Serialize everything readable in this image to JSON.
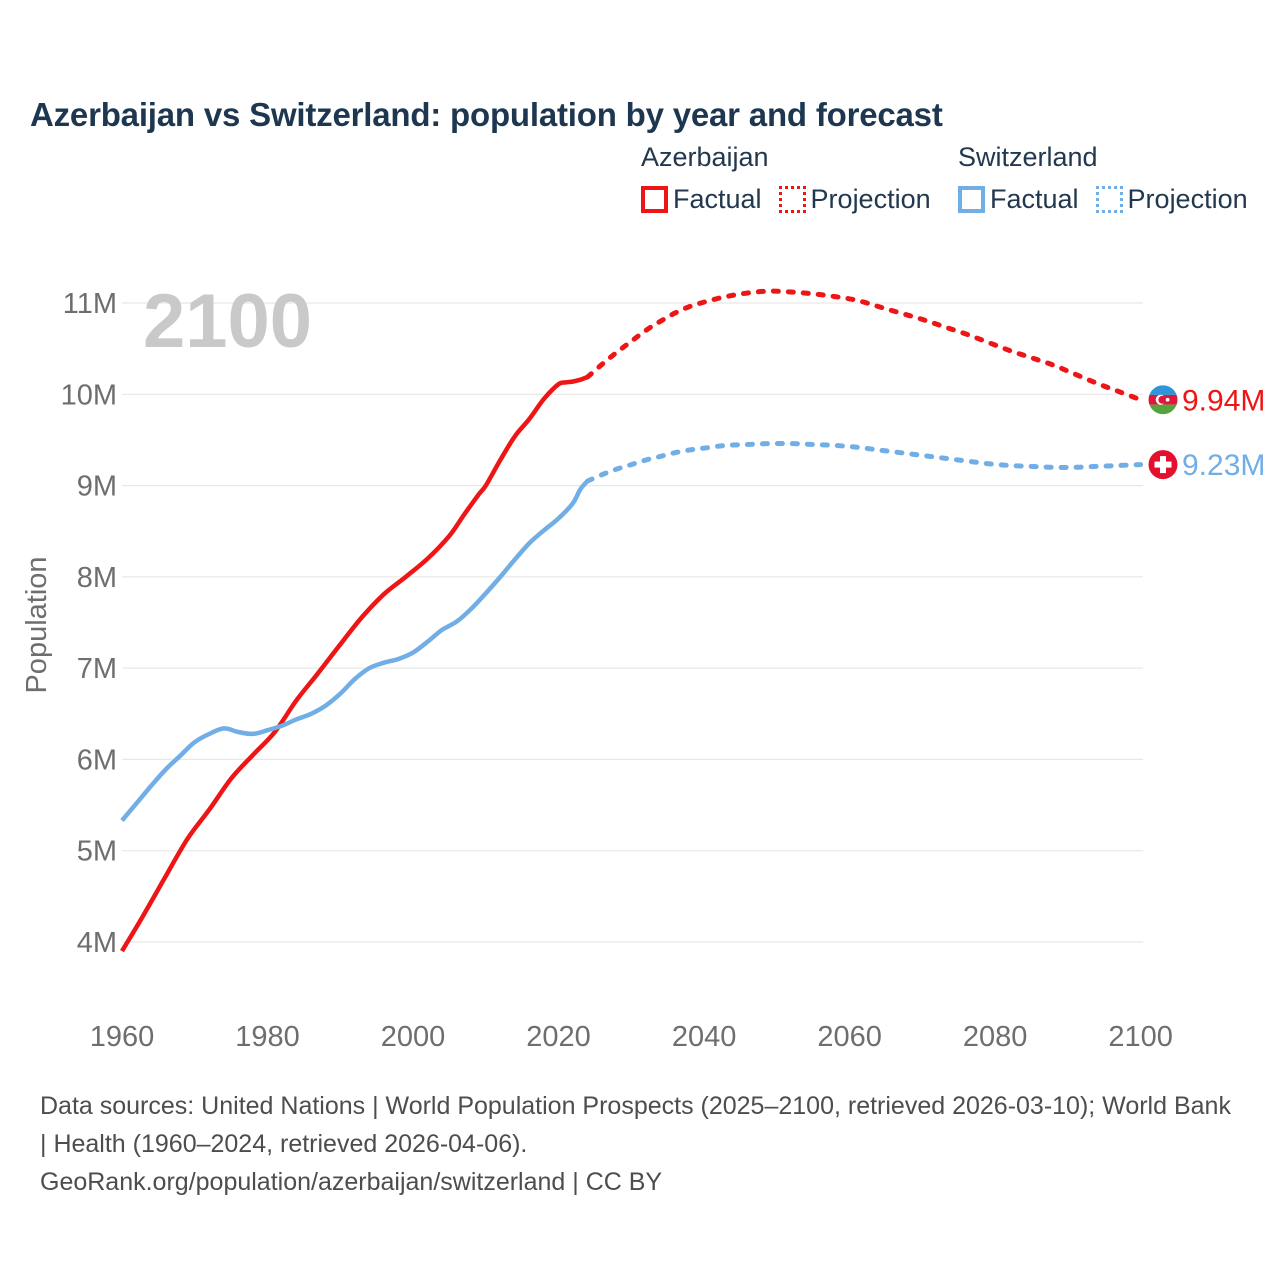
{
  "title": "Azerbaijan vs Switzerland: population by year and forecast",
  "watermark": "2100",
  "legend": {
    "groups": [
      {
        "country": "Azerbaijan",
        "color": "#ed1515",
        "items": [
          {
            "label": "Factual",
            "style": "solid"
          },
          {
            "label": "Projection",
            "style": "dotted"
          }
        ]
      },
      {
        "country": "Switzerland",
        "color": "#72aee6",
        "items": [
          {
            "label": "Factual",
            "style": "solid"
          },
          {
            "label": "Projection",
            "style": "dotted"
          }
        ]
      }
    ]
  },
  "chart_data": {
    "type": "line",
    "title": "Azerbaijan vs Switzerland: population by year and forecast",
    "xlabel": "",
    "ylabel": "Population",
    "xlim": [
      1960,
      2100
    ],
    "ylim": [
      3.55,
      11.5
    ],
    "grid": "horizontal",
    "legend_position": "top-right",
    "x_ticks": [
      {
        "value": 1960,
        "label": "1960"
      },
      {
        "value": 1980,
        "label": "1980"
      },
      {
        "value": 2000,
        "label": "2000"
      },
      {
        "value": 2020,
        "label": "2020"
      },
      {
        "value": 2040,
        "label": "2040"
      },
      {
        "value": 2060,
        "label": "2060"
      },
      {
        "value": 2080,
        "label": "2080"
      },
      {
        "value": 2100,
        "label": "2100"
      }
    ],
    "y_ticks": [
      {
        "value": 4,
        "label": "4M"
      },
      {
        "value": 5,
        "label": "5M"
      },
      {
        "value": 6,
        "label": "6M"
      },
      {
        "value": 7,
        "label": "7M"
      },
      {
        "value": 8,
        "label": "8M"
      },
      {
        "value": 9,
        "label": "9M"
      },
      {
        "value": 10,
        "label": "10M"
      },
      {
        "value": 11,
        "label": "11M"
      }
    ],
    "unit": "millions",
    "series": [
      {
        "id": "azerbaijan-factual",
        "name": "Azerbaijan Factual",
        "color": "#ed1515",
        "style": "solid",
        "x": [
          1960,
          1963,
          1966,
          1969,
          1972,
          1975,
          1978,
          1981,
          1984,
          1987,
          1990,
          1993,
          1996,
          1999,
          2002,
          2005,
          2007,
          2009,
          2010,
          2012,
          2014,
          2016,
          2018,
          2020,
          2021,
          2022,
          2023,
          2024
        ],
        "values": [
          3.9,
          4.3,
          4.72,
          5.13,
          5.45,
          5.79,
          6.05,
          6.3,
          6.65,
          6.95,
          7.26,
          7.56,
          7.81,
          8.0,
          8.2,
          8.45,
          8.68,
          8.9,
          9.0,
          9.28,
          9.54,
          9.73,
          9.95,
          10.11,
          10.13,
          10.14,
          10.16,
          10.19
        ]
      },
      {
        "id": "azerbaijan-projection",
        "name": "Azerbaijan Projection",
        "color": "#ed1515",
        "style": "dotted",
        "x": [
          2024,
          2026,
          2028,
          2030,
          2032,
          2034,
          2036,
          2038,
          2040,
          2043,
          2046,
          2049,
          2052,
          2055,
          2058,
          2061,
          2064,
          2067,
          2070,
          2073,
          2076,
          2079,
          2082,
          2085,
          2088,
          2091,
          2094,
          2097,
          2100
        ],
        "values": [
          10.19,
          10.33,
          10.46,
          10.58,
          10.7,
          10.8,
          10.89,
          10.96,
          11.01,
          11.07,
          11.11,
          11.13,
          11.12,
          11.1,
          11.07,
          11.03,
          10.96,
          10.89,
          10.82,
          10.74,
          10.66,
          10.57,
          10.48,
          10.4,
          10.32,
          10.22,
          10.12,
          10.03,
          9.94
        ]
      },
      {
        "id": "switzerland-factual",
        "name": "Switzerland Factual",
        "color": "#72aee6",
        "style": "solid",
        "x": [
          1960,
          1962,
          1964,
          1966,
          1968,
          1970,
          1972,
          1974,
          1976,
          1978,
          1980,
          1982,
          1984,
          1986,
          1988,
          1990,
          1992,
          1994,
          1996,
          1998,
          2000,
          2002,
          2004,
          2006,
          2008,
          2010,
          2012,
          2014,
          2016,
          2018,
          2020,
          2022,
          2023,
          2024
        ],
        "values": [
          5.33,
          5.52,
          5.71,
          5.89,
          6.04,
          6.19,
          6.28,
          6.34,
          6.3,
          6.28,
          6.32,
          6.37,
          6.44,
          6.5,
          6.59,
          6.72,
          6.88,
          7.0,
          7.06,
          7.1,
          7.17,
          7.29,
          7.42,
          7.51,
          7.65,
          7.82,
          8.0,
          8.19,
          8.37,
          8.51,
          8.64,
          8.81,
          8.96,
          9.05
        ]
      },
      {
        "id": "switzerland-projection",
        "name": "Switzerland Projection",
        "color": "#72aee6",
        "style": "dotted",
        "x": [
          2024,
          2026,
          2028,
          2030,
          2032,
          2034,
          2036,
          2038,
          2040,
          2043,
          2046,
          2049,
          2052,
          2055,
          2058,
          2061,
          2064,
          2067,
          2070,
          2073,
          2076,
          2079,
          2082,
          2085,
          2088,
          2091,
          2094,
          2097,
          2100
        ],
        "values": [
          9.05,
          9.12,
          9.18,
          9.23,
          9.28,
          9.32,
          9.36,
          9.39,
          9.41,
          9.44,
          9.45,
          9.46,
          9.46,
          9.45,
          9.44,
          9.42,
          9.39,
          9.36,
          9.33,
          9.3,
          9.27,
          9.24,
          9.22,
          9.21,
          9.2,
          9.2,
          9.21,
          9.22,
          9.23
        ]
      }
    ],
    "end_labels": [
      {
        "country": "Azerbaijan",
        "flag": "azerbaijan",
        "label": "9.94M",
        "value": 9.94,
        "color": "#ed1515"
      },
      {
        "country": "Switzerland",
        "flag": "switzerland",
        "label": "9.23M",
        "value": 9.23,
        "color": "#72aee6"
      }
    ]
  },
  "footer": {
    "sources": "Data sources: United Nations | World Population Prospects (2025–2100, retrieved 2026-03-10); World Bank | Health (1960–2024, retrieved 2026-04-06).",
    "attribution": "GeoRank.org/population/azerbaijan/switzerland | CC BY"
  }
}
